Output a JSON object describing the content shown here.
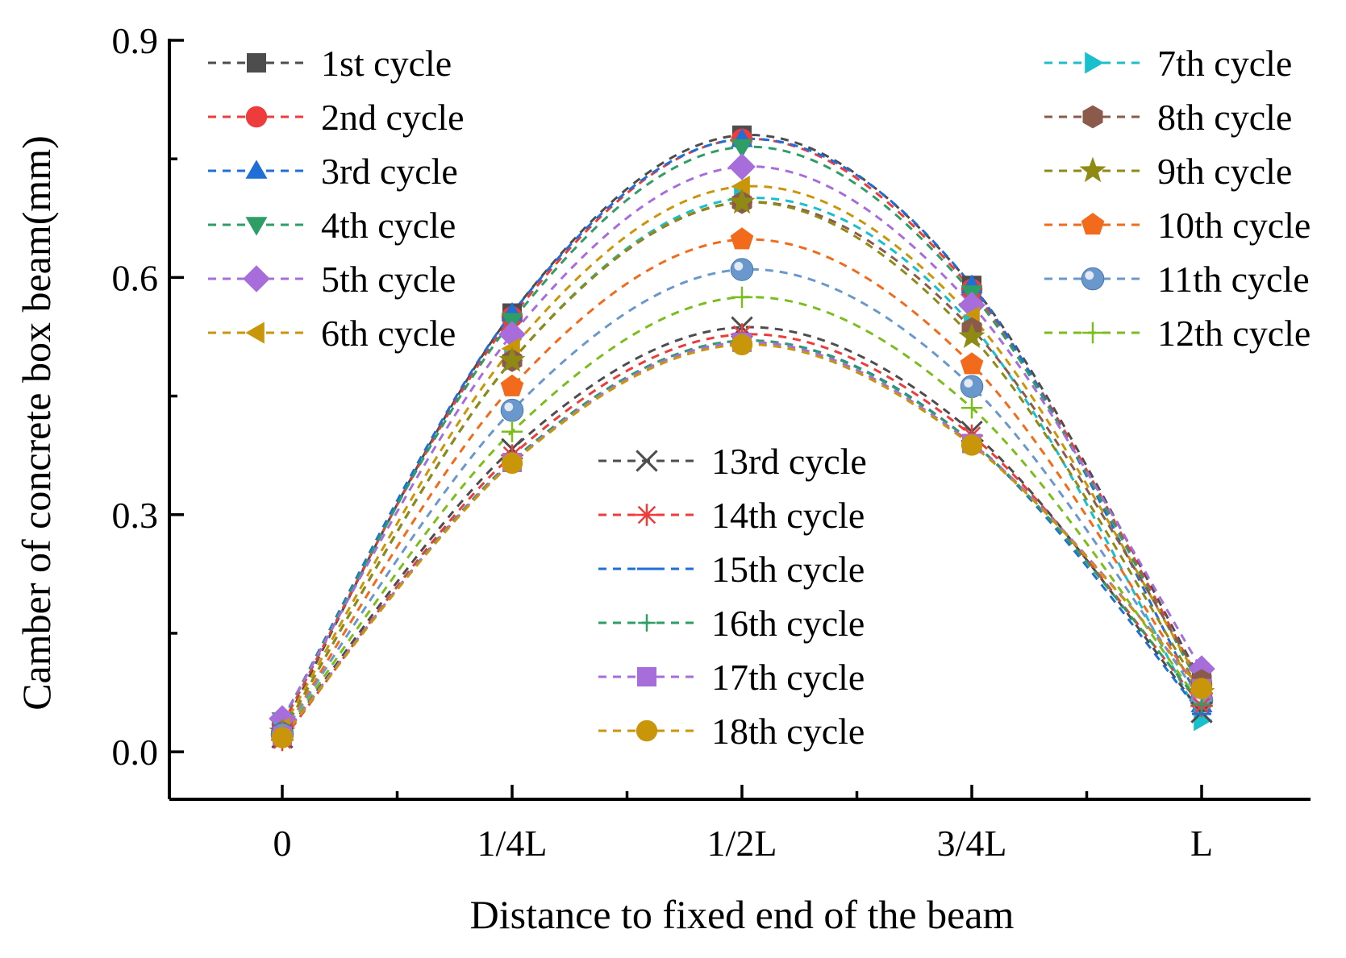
{
  "chart_data": {
    "type": "line",
    "title": "",
    "xlabel": "Distance to fixed end of the beam",
    "ylabel": "Camber of concrete box beam(mm)",
    "categories": [
      "0",
      "1/4L",
      "1/2L",
      "3/4L",
      "L"
    ],
    "ylim": [
      -0.06,
      0.9
    ],
    "yticks": [
      "0.0",
      "0.3",
      "0.6",
      "0.9"
    ],
    "grid": false,
    "legend_placement": "inside, three groups (top-left, top-right, center)",
    "series": [
      {
        "name": "1st cycle",
        "marker": "square",
        "color": "#4d4d4d",
        "values": [
          0.03,
          0.555,
          0.78,
          0.59,
          0.09
        ]
      },
      {
        "name": "2nd cycle",
        "marker": "circle",
        "color": "#ee3b3b",
        "values": [
          0.035,
          0.55,
          0.775,
          0.585,
          0.085
        ]
      },
      {
        "name": "3rd cycle",
        "marker": "triangle-up",
        "color": "#1f6fd6",
        "values": [
          0.04,
          0.555,
          0.775,
          0.59,
          0.06
        ]
      },
      {
        "name": "4th cycle",
        "marker": "triangle-down",
        "color": "#2e9e66",
        "values": [
          0.04,
          0.545,
          0.765,
          0.58,
          0.08
        ]
      },
      {
        "name": "5th cycle",
        "marker": "diamond",
        "color": "#a66ddb",
        "values": [
          0.042,
          0.528,
          0.74,
          0.565,
          0.105
        ]
      },
      {
        "name": "6th cycle",
        "marker": "triangle-left",
        "color": "#c9960a",
        "values": [
          0.03,
          0.51,
          0.715,
          0.55,
          0.085
        ]
      },
      {
        "name": "7th cycle",
        "marker": "triangle-right",
        "color": "#17c0cc",
        "values": [
          0.025,
          0.495,
          0.7,
          0.54,
          0.04
        ]
      },
      {
        "name": "8th cycle",
        "marker": "hexagon",
        "color": "#8b5a4b",
        "values": [
          0.025,
          0.495,
          0.695,
          0.535,
          0.09
        ]
      },
      {
        "name": "9th cycle",
        "marker": "star",
        "color": "#8f8a14",
        "values": [
          0.025,
          0.495,
          0.695,
          0.525,
          0.075
        ]
      },
      {
        "name": "10th cycle",
        "marker": "pentagon",
        "color": "#f26a1b",
        "values": [
          0.022,
          0.462,
          0.648,
          0.49,
          0.07
        ]
      },
      {
        "name": "11th cycle",
        "marker": "sphere",
        "color": "#6a98cc",
        "values": [
          0.022,
          0.432,
          0.61,
          0.462,
          0.065
        ]
      },
      {
        "name": "12th cycle",
        "marker": "plus",
        "color": "#7cbd1e",
        "values": [
          0.02,
          0.405,
          0.575,
          0.435,
          0.06
        ]
      },
      {
        "name": "13rd cycle",
        "marker": "x",
        "color": "#4d4d4d",
        "values": [
          0.018,
          0.383,
          0.537,
          0.405,
          0.05
        ]
      },
      {
        "name": "14th cycle",
        "marker": "asterisk",
        "color": "#ee3b3b",
        "values": [
          0.015,
          0.375,
          0.528,
          0.4,
          0.058
        ]
      },
      {
        "name": "15th cycle",
        "marker": "dash",
        "color": "#1f6fd6",
        "values": [
          0.018,
          0.368,
          0.52,
          0.392,
          0.048
        ]
      },
      {
        "name": "16th cycle",
        "marker": "plus-small",
        "color": "#2e9e66",
        "values": [
          0.018,
          0.368,
          0.52,
          0.392,
          0.06
        ]
      },
      {
        "name": "17th cycle",
        "marker": "square",
        "color": "#a66ddb",
        "values": [
          0.02,
          0.366,
          0.518,
          0.39,
          0.08
        ]
      },
      {
        "name": "18th cycle",
        "marker": "circle",
        "color": "#c9960a",
        "values": [
          0.018,
          0.365,
          0.515,
          0.388,
          0.08
        ]
      }
    ]
  }
}
